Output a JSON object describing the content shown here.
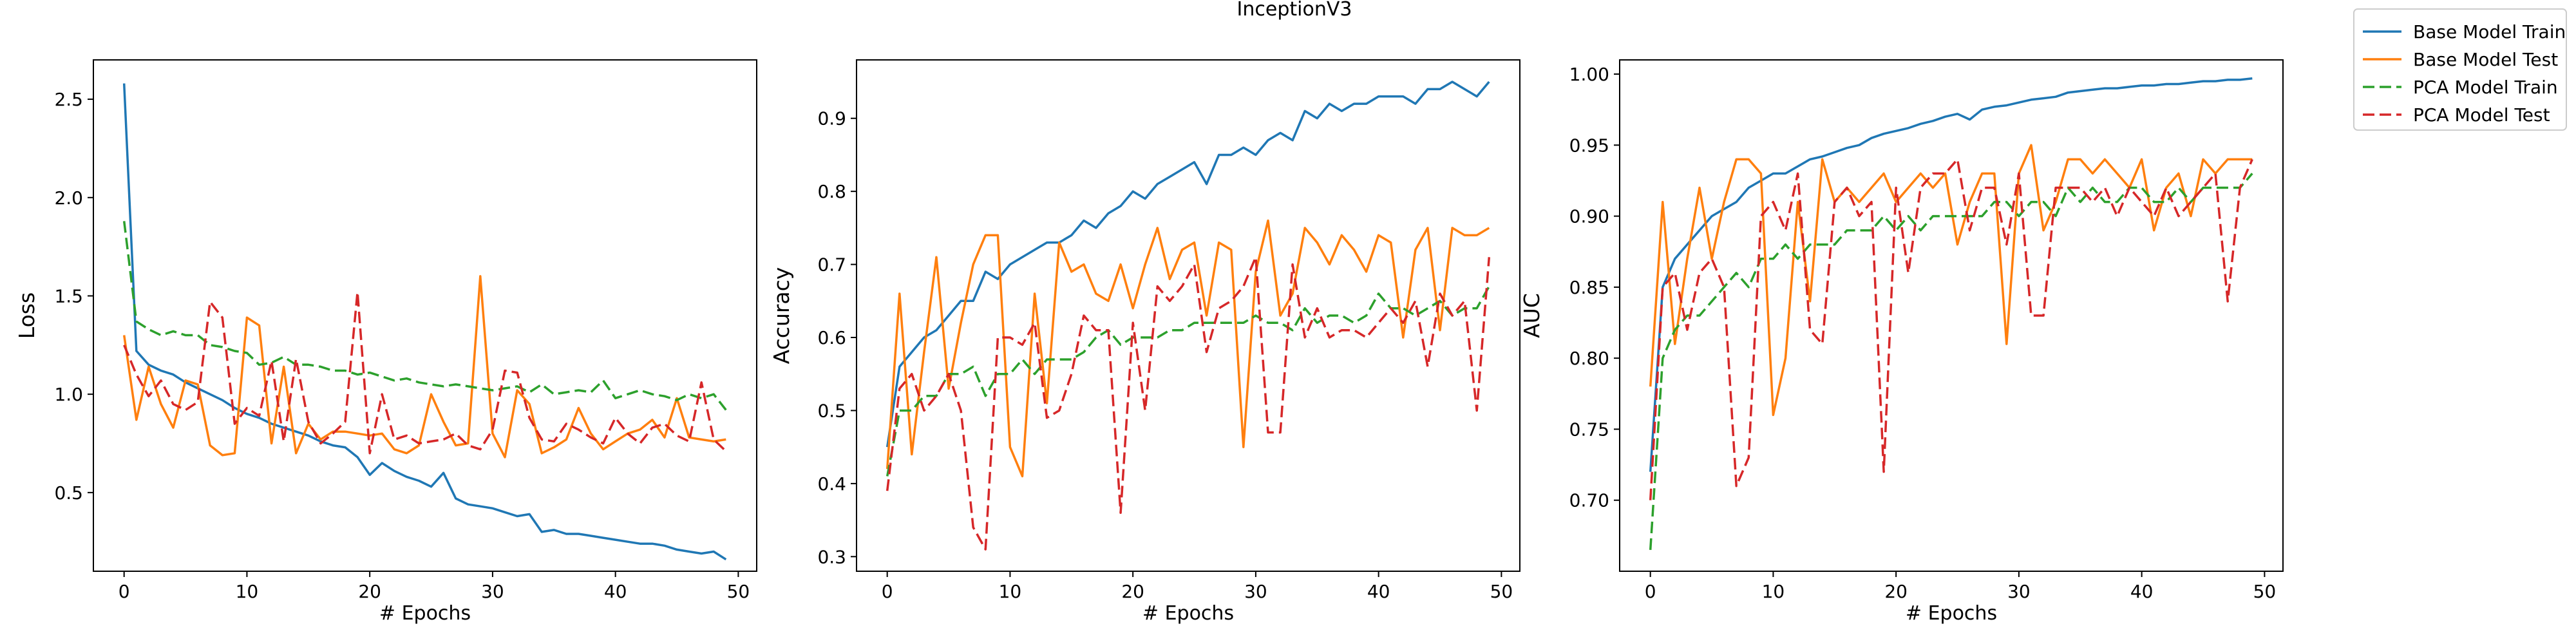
{
  "figure": {
    "title": "InceptionV3"
  },
  "legend": {
    "placement": "outside-top-right",
    "entries": [
      {
        "label": "Base Model Train",
        "color": "#1f77b4",
        "style": "solid"
      },
      {
        "label": "Base Model Test",
        "color": "#ff7f0e",
        "style": "solid"
      },
      {
        "label": "PCA Model Train",
        "color": "#2ca02c",
        "style": "dashed"
      },
      {
        "label": "PCA Model Test",
        "color": "#d62728",
        "style": "dashed"
      }
    ]
  },
  "chart_data": [
    {
      "type": "line",
      "title": "",
      "xlabel": "# Epochs",
      "ylabel": "Loss",
      "xlim": [
        -2.5,
        51.5
      ],
      "ylim": [
        0.1,
        2.7
      ],
      "xticks": [
        0,
        10,
        20,
        30,
        40,
        50
      ],
      "xtick_labels": [
        "0",
        "10",
        "20",
        "30",
        "40",
        "50"
      ],
      "yticks": [
        0.5,
        1.0,
        1.5,
        2.0,
        2.5
      ],
      "ytick_labels": [
        "0.5",
        "1.0",
        "1.5",
        "2.0",
        "2.5"
      ],
      "grid": false,
      "x": [
        0,
        1,
        2,
        3,
        4,
        5,
        6,
        7,
        8,
        9,
        10,
        11,
        12,
        13,
        14,
        15,
        16,
        17,
        18,
        19,
        20,
        21,
        22,
        23,
        24,
        25,
        26,
        27,
        28,
        29,
        30,
        31,
        32,
        33,
        34,
        35,
        36,
        37,
        38,
        39,
        40,
        41,
        42,
        43,
        44,
        45,
        46,
        47,
        48,
        49
      ],
      "series": [
        {
          "name": "Base Model Train",
          "color": "#1f77b4",
          "dash": "solid",
          "values": [
            2.58,
            1.22,
            1.15,
            1.12,
            1.1,
            1.06,
            1.03,
            1.0,
            0.97,
            0.93,
            0.9,
            0.88,
            0.85,
            0.83,
            0.81,
            0.79,
            0.76,
            0.74,
            0.73,
            0.68,
            0.59,
            0.65,
            0.61,
            0.58,
            0.56,
            0.53,
            0.6,
            0.47,
            0.44,
            0.43,
            0.42,
            0.4,
            0.38,
            0.39,
            0.3,
            0.31,
            0.29,
            0.29,
            0.28,
            0.27,
            0.26,
            0.25,
            0.24,
            0.24,
            0.23,
            0.21,
            0.2,
            0.19,
            0.2,
            0.16
          ]
        },
        {
          "name": "Base Model Test",
          "color": "#ff7f0e",
          "dash": "solid",
          "values": [
            1.3,
            0.87,
            1.14,
            0.95,
            0.83,
            1.07,
            1.05,
            0.74,
            0.69,
            0.7,
            1.39,
            1.35,
            0.75,
            1.14,
            0.7,
            0.85,
            0.77,
            0.81,
            0.81,
            0.8,
            0.79,
            0.8,
            0.72,
            0.7,
            0.74,
            1.0,
            0.86,
            0.74,
            0.75,
            1.6,
            0.8,
            0.68,
            1.02,
            0.95,
            0.7,
            0.73,
            0.77,
            0.93,
            0.8,
            0.72,
            0.76,
            0.8,
            0.82,
            0.87,
            0.78,
            0.98,
            0.78,
            0.77,
            0.76,
            0.77
          ]
        },
        {
          "name": "PCA Model Train",
          "color": "#2ca02c",
          "dash": "dashed",
          "values": [
            1.88,
            1.37,
            1.33,
            1.3,
            1.32,
            1.3,
            1.3,
            1.25,
            1.24,
            1.22,
            1.21,
            1.15,
            1.16,
            1.19,
            1.15,
            1.15,
            1.14,
            1.12,
            1.12,
            1.1,
            1.11,
            1.09,
            1.07,
            1.08,
            1.06,
            1.05,
            1.04,
            1.05,
            1.04,
            1.03,
            1.02,
            1.03,
            1.04,
            1.01,
            1.05,
            1.0,
            1.01,
            1.02,
            1.01,
            1.07,
            0.98,
            1.0,
            1.02,
            1.0,
            0.99,
            0.97,
            1.0,
            0.98,
            1.0,
            0.92
          ]
        },
        {
          "name": "PCA Model Test",
          "color": "#d62728",
          "dash": "dashed",
          "values": [
            1.25,
            1.1,
            0.99,
            1.07,
            0.95,
            0.92,
            0.96,
            1.47,
            1.39,
            0.85,
            0.93,
            0.89,
            1.17,
            0.76,
            1.18,
            0.86,
            0.75,
            0.8,
            0.86,
            1.52,
            0.7,
            1.0,
            0.77,
            0.79,
            0.75,
            0.76,
            0.77,
            0.8,
            0.74,
            0.72,
            0.82,
            1.12,
            1.11,
            0.88,
            0.77,
            0.76,
            0.85,
            0.82,
            0.78,
            0.75,
            0.88,
            0.8,
            0.75,
            0.83,
            0.85,
            0.79,
            0.76,
            1.06,
            0.77,
            0.71
          ]
        }
      ]
    },
    {
      "type": "line",
      "title": "",
      "xlabel": "# Epochs",
      "ylabel": "Accuracy",
      "xlim": [
        -2.5,
        51.5
      ],
      "ylim": [
        0.28,
        0.98
      ],
      "xticks": [
        0,
        10,
        20,
        30,
        40,
        50
      ],
      "xtick_labels": [
        "0",
        "10",
        "20",
        "30",
        "40",
        "50"
      ],
      "yticks": [
        0.3,
        0.4,
        0.5,
        0.6,
        0.7,
        0.8,
        0.9
      ],
      "ytick_labels": [
        "0.3",
        "0.4",
        "0.5",
        "0.6",
        "0.7",
        "0.8",
        "0.9"
      ],
      "grid": false,
      "x": [
        0,
        1,
        2,
        3,
        4,
        5,
        6,
        7,
        8,
        9,
        10,
        11,
        12,
        13,
        14,
        15,
        16,
        17,
        18,
        19,
        20,
        21,
        22,
        23,
        24,
        25,
        26,
        27,
        28,
        29,
        30,
        31,
        32,
        33,
        34,
        35,
        36,
        37,
        38,
        39,
        40,
        41,
        42,
        43,
        44,
        45,
        46,
        47,
        48,
        49
      ],
      "series": [
        {
          "name": "Base Model Train",
          "color": "#1f77b4",
          "dash": "solid",
          "values": [
            0.45,
            0.56,
            0.58,
            0.6,
            0.61,
            0.63,
            0.65,
            0.65,
            0.69,
            0.68,
            0.7,
            0.71,
            0.72,
            0.73,
            0.73,
            0.74,
            0.76,
            0.75,
            0.77,
            0.78,
            0.8,
            0.79,
            0.81,
            0.82,
            0.83,
            0.84,
            0.81,
            0.85,
            0.85,
            0.86,
            0.85,
            0.87,
            0.88,
            0.87,
            0.91,
            0.9,
            0.92,
            0.91,
            0.92,
            0.92,
            0.93,
            0.93,
            0.93,
            0.92,
            0.94,
            0.94,
            0.95,
            0.94,
            0.93,
            0.95
          ]
        },
        {
          "name": "Base Model Test",
          "color": "#ff7f0e",
          "dash": "solid",
          "values": [
            0.42,
            0.66,
            0.44,
            0.58,
            0.71,
            0.53,
            0.62,
            0.7,
            0.74,
            0.74,
            0.45,
            0.41,
            0.66,
            0.51,
            0.73,
            0.69,
            0.7,
            0.66,
            0.65,
            0.7,
            0.64,
            0.7,
            0.75,
            0.68,
            0.72,
            0.73,
            0.63,
            0.73,
            0.72,
            0.45,
            0.69,
            0.76,
            0.63,
            0.66,
            0.75,
            0.73,
            0.7,
            0.74,
            0.72,
            0.69,
            0.74,
            0.73,
            0.6,
            0.72,
            0.75,
            0.61,
            0.75,
            0.74,
            0.74,
            0.75
          ]
        },
        {
          "name": "PCA Model Train",
          "color": "#2ca02c",
          "dash": "dashed",
          "values": [
            0.41,
            0.5,
            0.5,
            0.52,
            0.52,
            0.55,
            0.55,
            0.56,
            0.52,
            0.55,
            0.55,
            0.57,
            0.55,
            0.57,
            0.57,
            0.57,
            0.58,
            0.6,
            0.61,
            0.59,
            0.6,
            0.6,
            0.6,
            0.61,
            0.61,
            0.62,
            0.62,
            0.62,
            0.62,
            0.62,
            0.63,
            0.62,
            0.62,
            0.61,
            0.64,
            0.62,
            0.63,
            0.63,
            0.62,
            0.63,
            0.66,
            0.64,
            0.64,
            0.63,
            0.64,
            0.65,
            0.63,
            0.64,
            0.64,
            0.67
          ]
        },
        {
          "name": "PCA Model Test",
          "color": "#d62728",
          "dash": "dashed",
          "values": [
            0.39,
            0.53,
            0.55,
            0.5,
            0.52,
            0.55,
            0.5,
            0.34,
            0.31,
            0.6,
            0.6,
            0.59,
            0.62,
            0.49,
            0.5,
            0.55,
            0.63,
            0.61,
            0.61,
            0.36,
            0.62,
            0.5,
            0.67,
            0.65,
            0.67,
            0.7,
            0.58,
            0.64,
            0.65,
            0.67,
            0.71,
            0.47,
            0.47,
            0.7,
            0.6,
            0.64,
            0.6,
            0.61,
            0.61,
            0.6,
            0.62,
            0.64,
            0.62,
            0.65,
            0.56,
            0.66,
            0.63,
            0.65,
            0.5,
            0.71
          ]
        }
      ]
    },
    {
      "type": "line",
      "title": "",
      "xlabel": "# Epochs",
      "ylabel": "AUC",
      "xlim": [
        -2.5,
        51.5
      ],
      "ylim": [
        0.65,
        1.01
      ],
      "xticks": [
        0,
        10,
        20,
        30,
        40,
        50
      ],
      "xtick_labels": [
        "0",
        "10",
        "20",
        "30",
        "40",
        "50"
      ],
      "yticks": [
        0.7,
        0.75,
        0.8,
        0.85,
        0.9,
        0.95,
        1.0
      ],
      "ytick_labels": [
        "0.70",
        "0.75",
        "0.80",
        "0.85",
        "0.90",
        "0.95",
        "1.00"
      ],
      "grid": false,
      "x": [
        0,
        1,
        2,
        3,
        4,
        5,
        6,
        7,
        8,
        9,
        10,
        11,
        12,
        13,
        14,
        15,
        16,
        17,
        18,
        19,
        20,
        21,
        22,
        23,
        24,
        25,
        26,
        27,
        28,
        29,
        30,
        31,
        32,
        33,
        34,
        35,
        36,
        37,
        38,
        39,
        40,
        41,
        42,
        43,
        44,
        45,
        46,
        47,
        48,
        49
      ],
      "series": [
        {
          "name": "Base Model Train",
          "color": "#1f77b4",
          "dash": "solid",
          "values": [
            0.72,
            0.85,
            0.87,
            0.88,
            0.89,
            0.9,
            0.905,
            0.91,
            0.92,
            0.925,
            0.93,
            0.93,
            0.935,
            0.94,
            0.942,
            0.945,
            0.948,
            0.95,
            0.955,
            0.958,
            0.96,
            0.962,
            0.965,
            0.967,
            0.97,
            0.972,
            0.968,
            0.975,
            0.977,
            0.978,
            0.98,
            0.982,
            0.983,
            0.984,
            0.987,
            0.988,
            0.989,
            0.99,
            0.99,
            0.991,
            0.992,
            0.992,
            0.993,
            0.993,
            0.994,
            0.995,
            0.995,
            0.996,
            0.996,
            0.997
          ]
        },
        {
          "name": "Base Model Test",
          "color": "#ff7f0e",
          "dash": "solid",
          "values": [
            0.78,
            0.91,
            0.81,
            0.87,
            0.92,
            0.87,
            0.91,
            0.94,
            0.94,
            0.93,
            0.76,
            0.8,
            0.91,
            0.84,
            0.94,
            0.91,
            0.92,
            0.91,
            0.92,
            0.93,
            0.91,
            0.92,
            0.93,
            0.92,
            0.93,
            0.88,
            0.91,
            0.93,
            0.93,
            0.81,
            0.93,
            0.95,
            0.89,
            0.91,
            0.94,
            0.94,
            0.93,
            0.94,
            0.93,
            0.92,
            0.94,
            0.89,
            0.92,
            0.93,
            0.9,
            0.94,
            0.93,
            0.94,
            0.94,
            0.94
          ]
        },
        {
          "name": "PCA Model Train",
          "color": "#2ca02c",
          "dash": "dashed",
          "values": [
            0.665,
            0.8,
            0.82,
            0.83,
            0.83,
            0.84,
            0.85,
            0.86,
            0.85,
            0.87,
            0.87,
            0.88,
            0.87,
            0.88,
            0.88,
            0.88,
            0.89,
            0.89,
            0.89,
            0.9,
            0.89,
            0.9,
            0.89,
            0.9,
            0.9,
            0.9,
            0.9,
            0.9,
            0.91,
            0.91,
            0.9,
            0.91,
            0.91,
            0.9,
            0.92,
            0.91,
            0.92,
            0.91,
            0.91,
            0.92,
            0.92,
            0.91,
            0.91,
            0.92,
            0.91,
            0.92,
            0.92,
            0.92,
            0.92,
            0.93
          ]
        },
        {
          "name": "PCA Model Test",
          "color": "#d62728",
          "dash": "dashed",
          "values": [
            0.7,
            0.85,
            0.86,
            0.82,
            0.86,
            0.87,
            0.85,
            0.71,
            0.73,
            0.9,
            0.91,
            0.89,
            0.93,
            0.82,
            0.81,
            0.91,
            0.92,
            0.9,
            0.91,
            0.72,
            0.92,
            0.86,
            0.92,
            0.93,
            0.93,
            0.94,
            0.89,
            0.92,
            0.92,
            0.88,
            0.93,
            0.83,
            0.83,
            0.92,
            0.92,
            0.92,
            0.91,
            0.92,
            0.9,
            0.92,
            0.91,
            0.9,
            0.92,
            0.9,
            0.91,
            0.92,
            0.93,
            0.84,
            0.92,
            0.94
          ]
        }
      ]
    }
  ]
}
